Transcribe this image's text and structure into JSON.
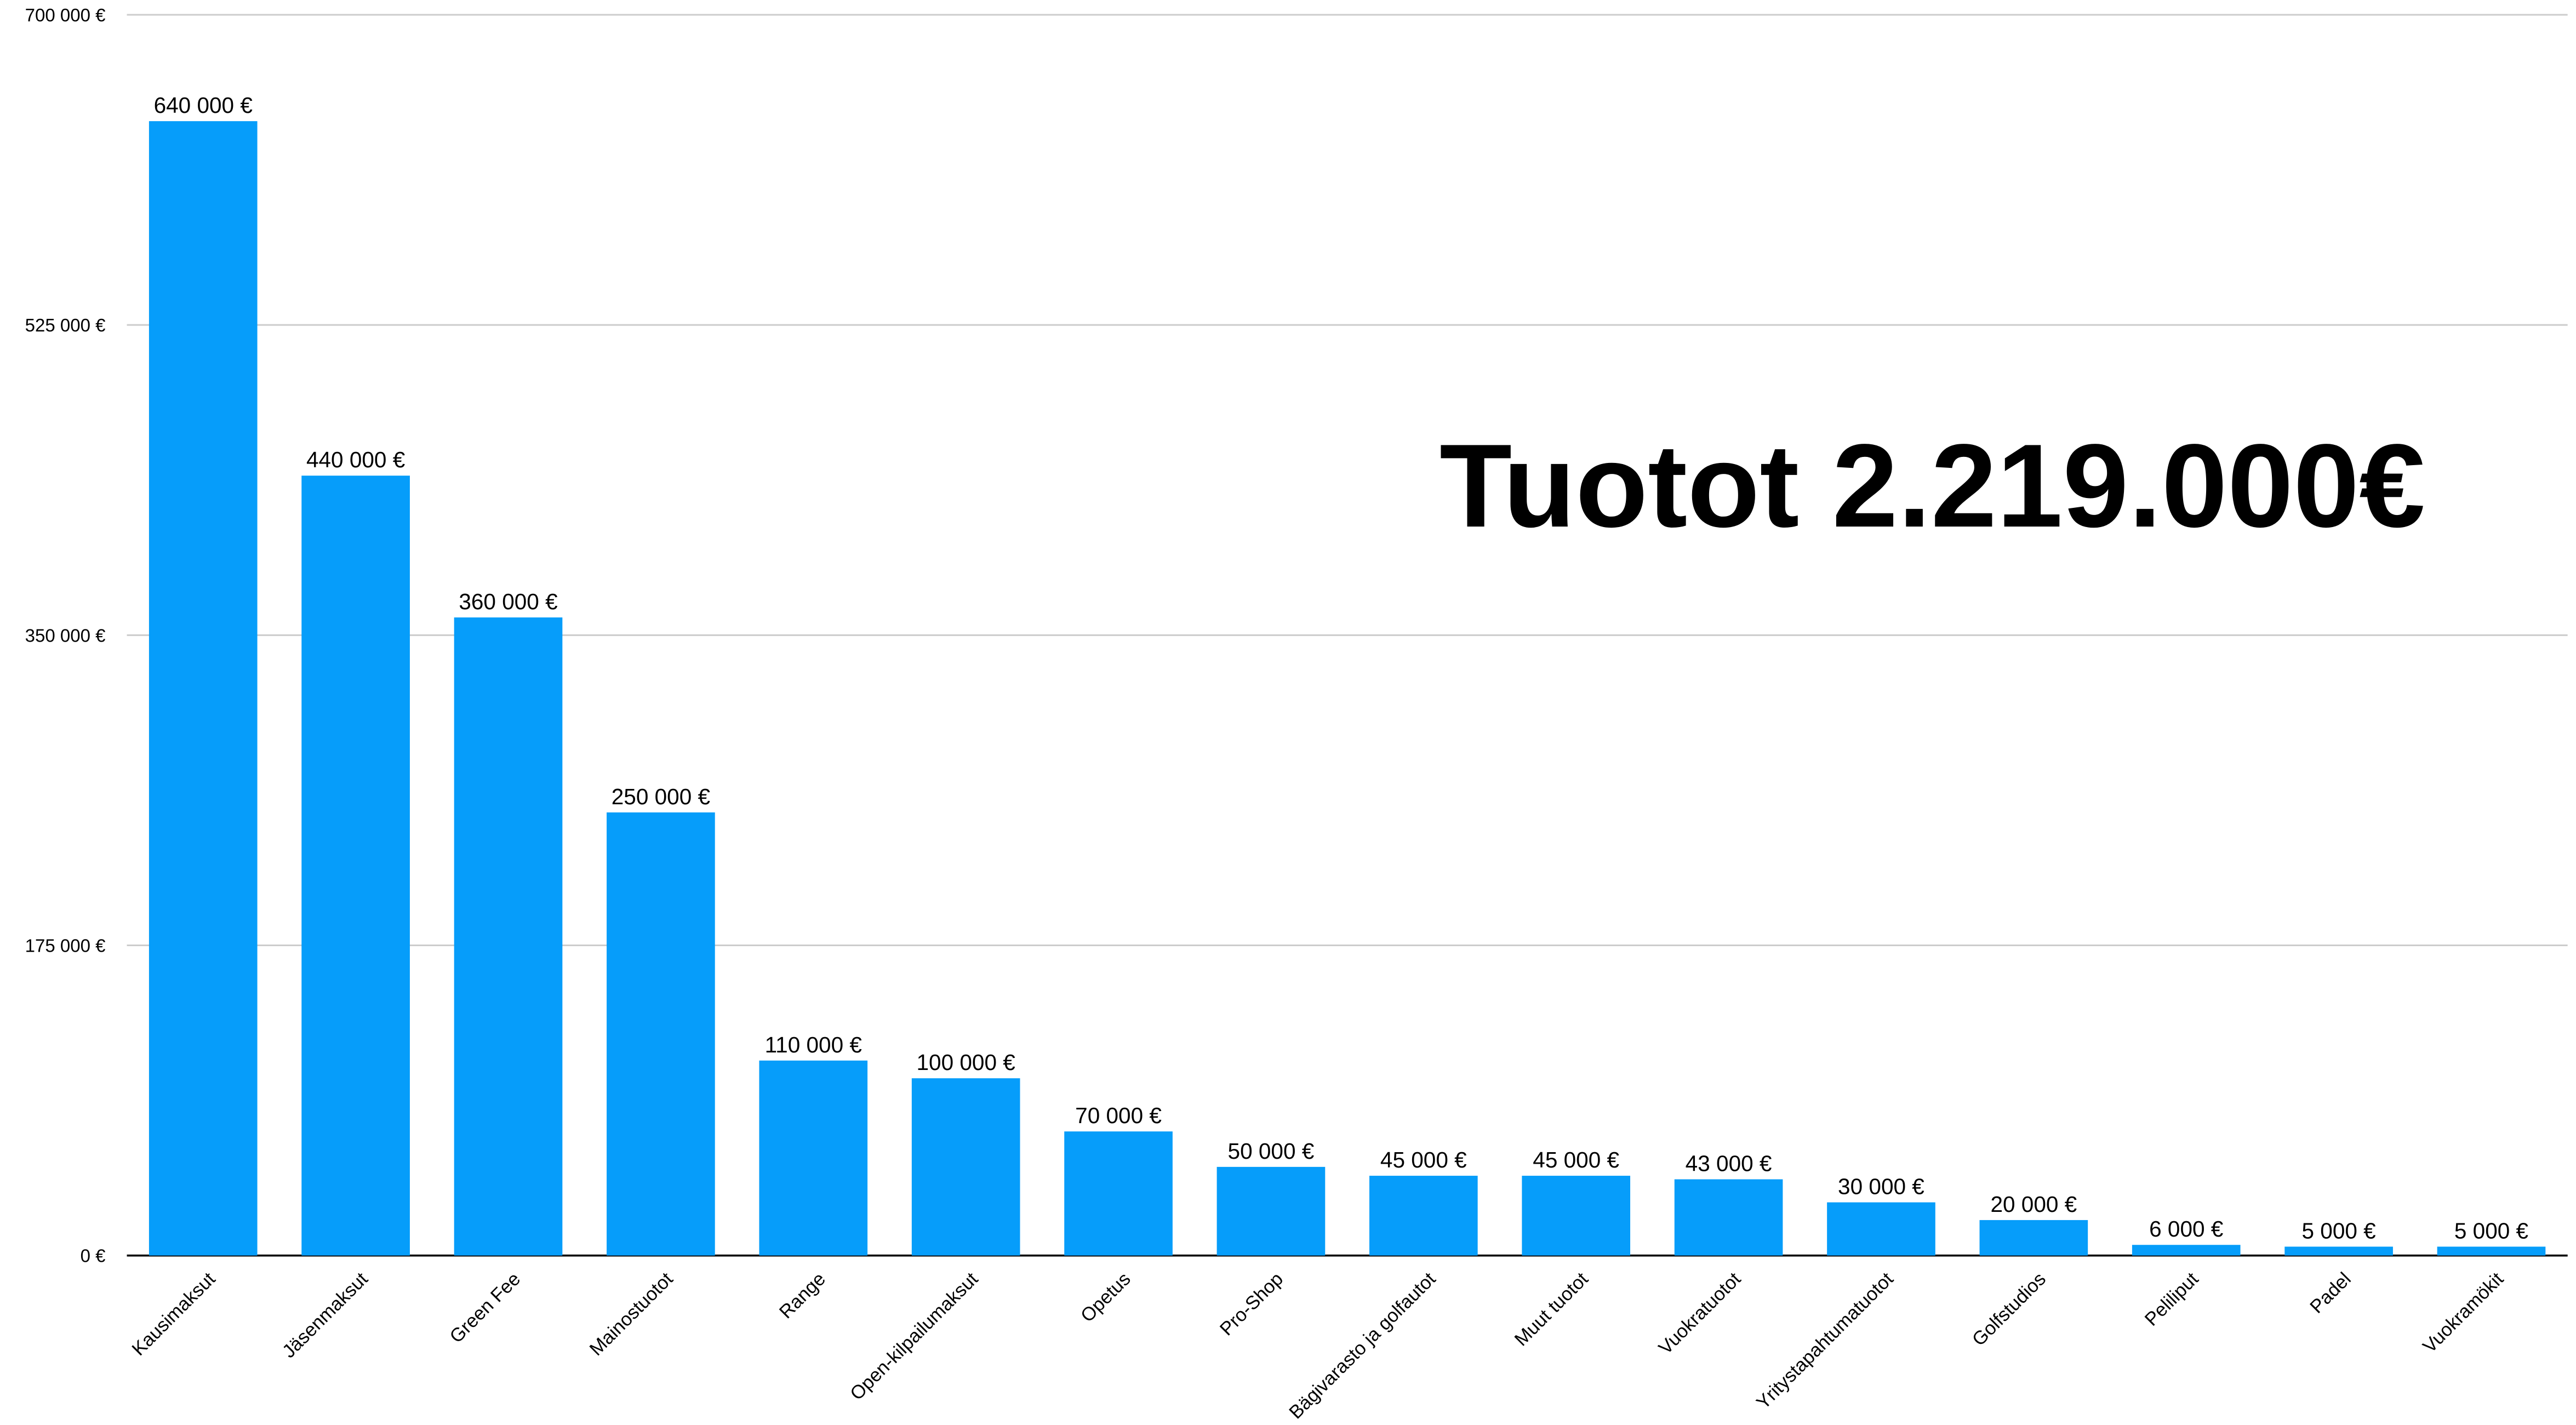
{
  "chart_data": {
    "type": "bar",
    "annotation": "Tuotot 2.219.000€",
    "categories": [
      "Kausimaksut",
      "Jäsenmaksut",
      "Green Fee",
      "Mainostuotot",
      "Range",
      "Open-kilpailumaksut",
      "Opetus",
      "Pro-Shop",
      "Bägivarasto ja golfautot",
      "Muut tuotot",
      "Vuokratuotot",
      "Yritystapahtumatuotot",
      "Golfstudios",
      "Peliliput",
      "Padel",
      "Vuokramökit"
    ],
    "values": [
      640000,
      440000,
      360000,
      250000,
      110000,
      100000,
      70000,
      50000,
      45000,
      45000,
      43000,
      30000,
      20000,
      6000,
      5000,
      5000
    ],
    "value_labels": [
      "640 000 €",
      "440 000 €",
      "360 000 €",
      "250 000 €",
      "110 000 €",
      "100 000 €",
      "70 000 €",
      "50 000 €",
      "45 000 €",
      "45 000 €",
      "43 000 €",
      "30 000 €",
      "20 000 €",
      "6 000 €",
      "5 000 €",
      "5 000 €"
    ],
    "color": "#069dfa",
    "ylim": [
      0,
      700000
    ],
    "yticks": [
      {
        "value": 0,
        "label": "0 €"
      },
      {
        "value": 175000,
        "label": "175 000 €"
      },
      {
        "value": 350000,
        "label": "350 000 €"
      },
      {
        "value": 525000,
        "label": "525 000 €"
      },
      {
        "value": 700000,
        "label": "700 000 €"
      }
    ],
    "grid": true
  }
}
